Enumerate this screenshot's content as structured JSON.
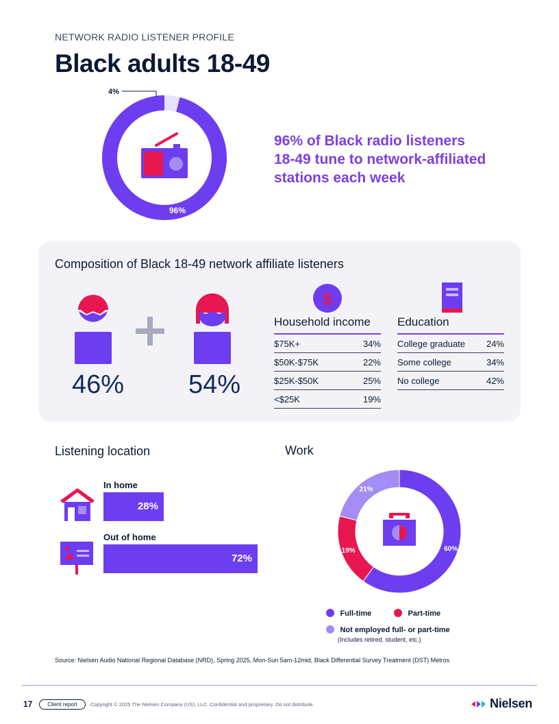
{
  "header": {
    "eyebrow": "NETWORK RADIO LISTENER PROFILE",
    "title": "Black adults 18-49"
  },
  "reach": {
    "network_pct": "96%",
    "other_pct": "4%",
    "network_value": 96,
    "other_value": 4,
    "headline_lines": [
      "96% of Black radio listeners",
      "18-49 tune to network-affiliated",
      "stations each week"
    ]
  },
  "composition": {
    "title": "Composition of Black 18-49 network affiliate listeners",
    "men_pct": "46%",
    "women_pct": "54%",
    "income": {
      "title": "Household income",
      "rows": [
        {
          "label": "$75K+",
          "value": "34%"
        },
        {
          "label": "$50K-$75K",
          "value": "22%"
        },
        {
          "label": "$25K-$50K",
          "value": "25%"
        },
        {
          "label": "<$25K",
          "value": "19%"
        }
      ]
    },
    "education": {
      "title": "Education",
      "rows": [
        {
          "label": "College graduate",
          "value": "24%"
        },
        {
          "label": "Some college",
          "value": "34%"
        },
        {
          "label": "No college",
          "value": "42%"
        }
      ]
    }
  },
  "location": {
    "title": "Listening location",
    "in_home_label": "In home",
    "in_home_pct": "28%",
    "in_home_value": 28,
    "out_home_label": "Out of home",
    "out_home_pct": "72%",
    "out_home_value": 72
  },
  "chart_data": {
    "type": "pie",
    "title": "Work",
    "labels": [
      "Full-time",
      "Part-time",
      "Not employed full- or part-time"
    ],
    "values": [
      60,
      19,
      21
    ],
    "value_labels": [
      "60%",
      "19%",
      "21%"
    ],
    "colors": [
      "#6d3df0",
      "#e8174f",
      "#a48cf5"
    ],
    "note": "(Includes retired, student, etc.)"
  },
  "colors": {
    "purple": "#6d3df0",
    "light_purple": "#a48cf5",
    "pink": "#e8174f",
    "headline": "#7b3fe4"
  },
  "footer": {
    "source": "Source: Nielsen Audio National Regional Database (NRD), Spring 2025, Mon-Sun 5am-12mid, Black Differential Survey Treatment (DST) Metros",
    "page": "17",
    "pill": "Client report",
    "copyright": "Copyright © 2025 The Nielsen Company (US), LLC. Confidential and proprietary. Do not distribute.",
    "brand": "Nielsen"
  }
}
